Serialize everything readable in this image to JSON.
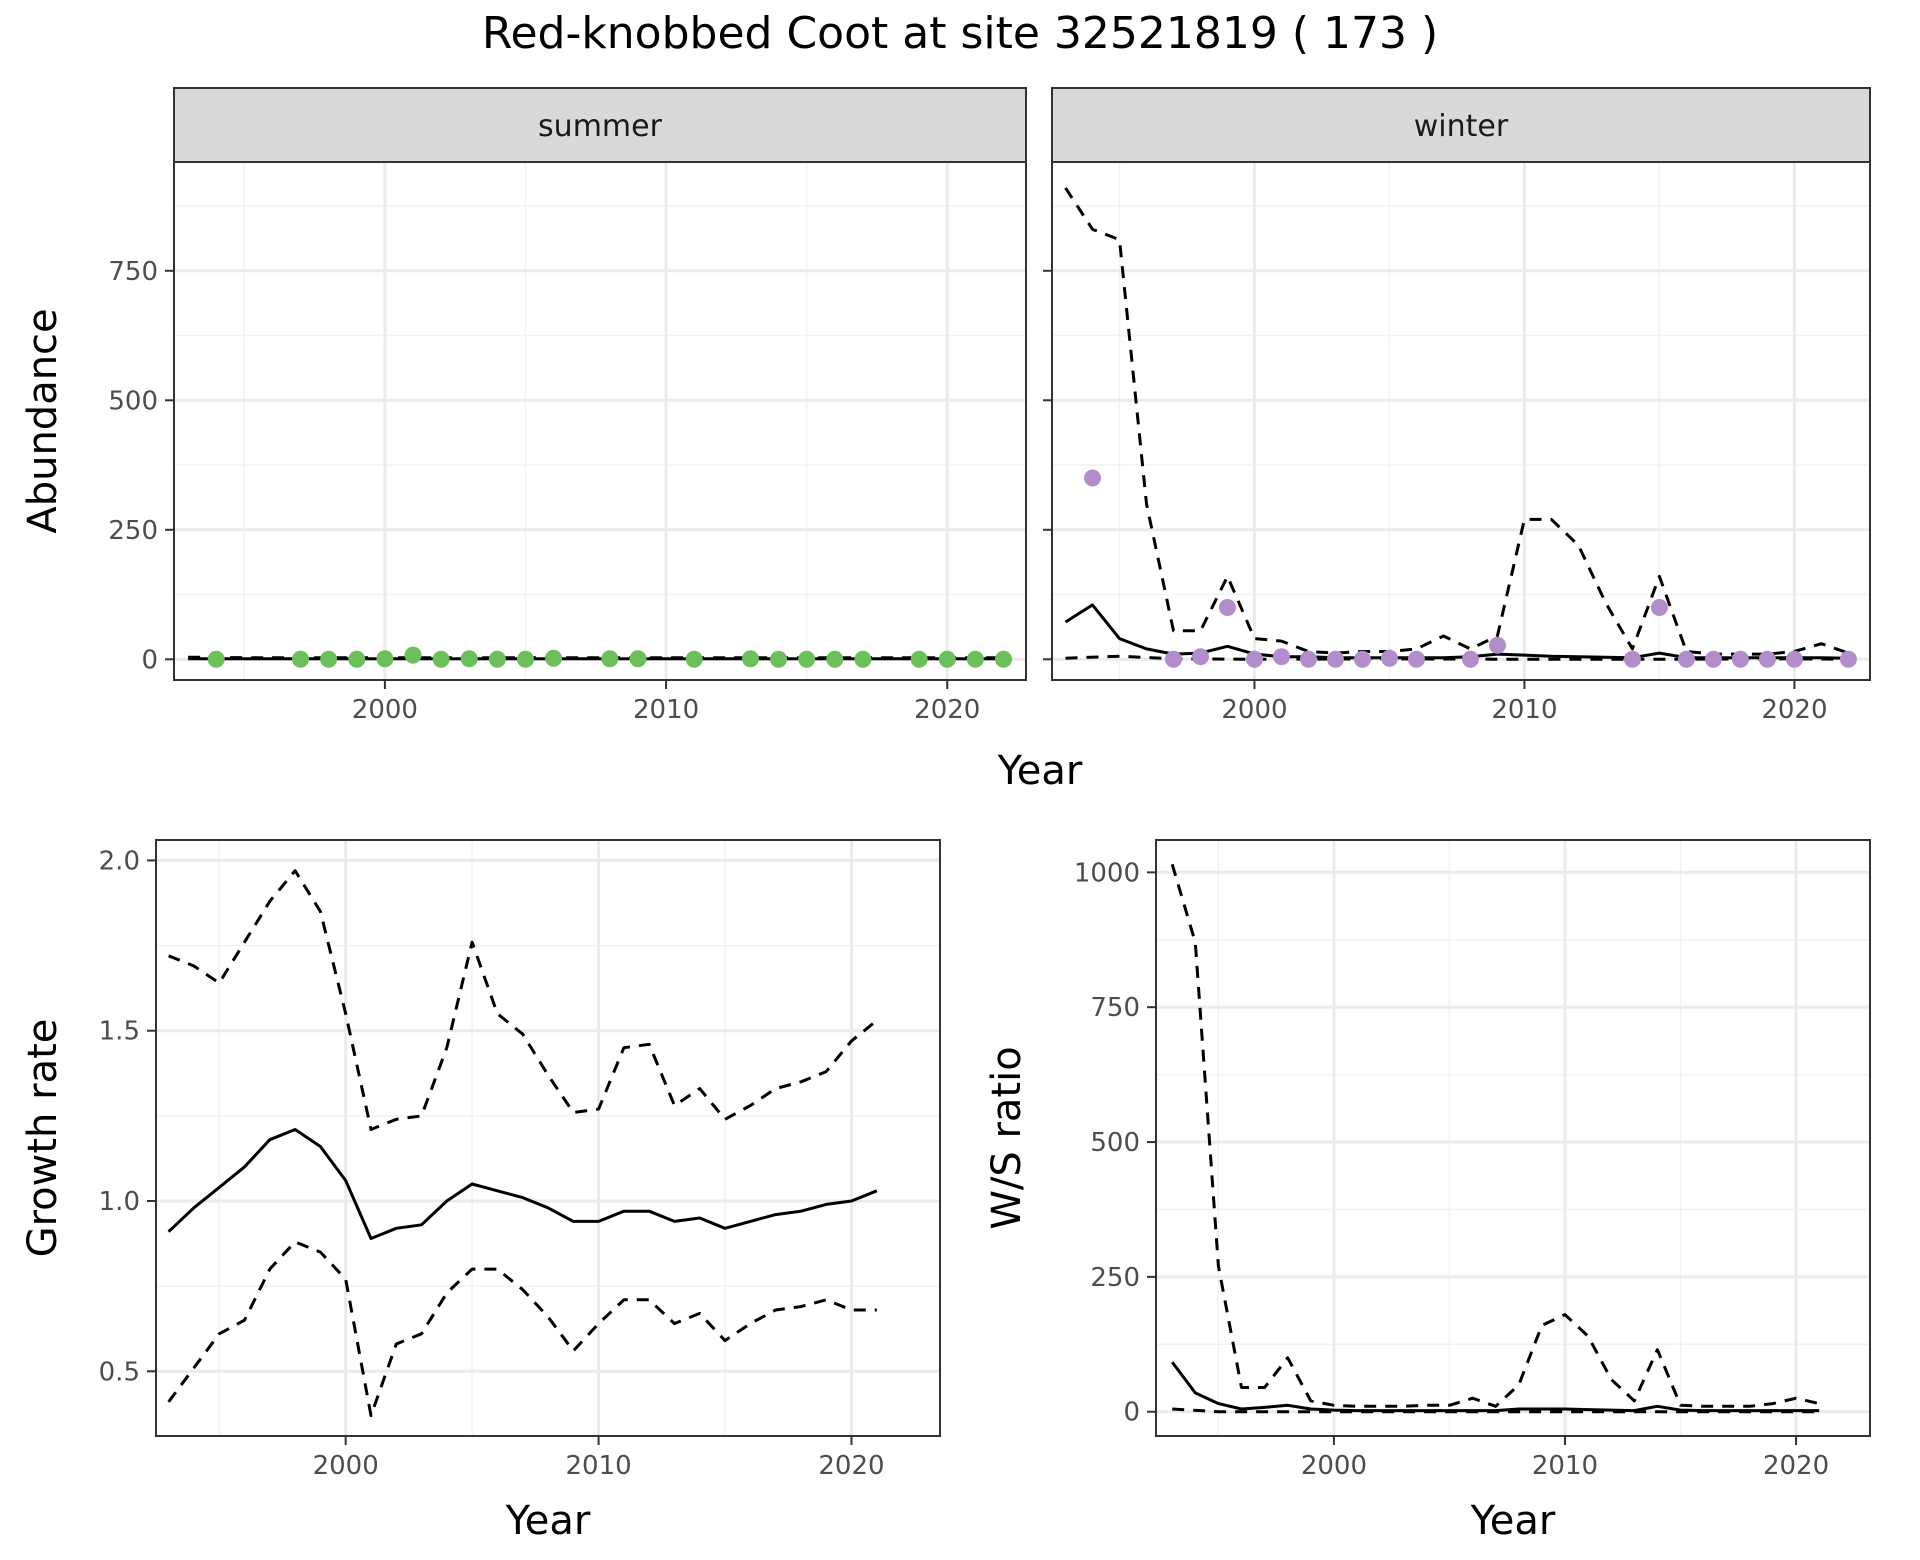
{
  "title": "Red-knobbed Coot at site 32521819 ( 173 )",
  "chart_data": [
    {
      "type": "line",
      "facets": [
        "summer",
        "winter"
      ],
      "xlabel": "Year",
      "ylabel": "Abundance",
      "xlim": [
        1992.5,
        2022.8
      ],
      "ylim": [
        -40,
        960
      ],
      "xticks": [
        2000,
        2010,
        2020
      ],
      "yticks": [
        0,
        250,
        500,
        750
      ],
      "panels": {
        "summer": {
          "points_color": "#6dbf5b",
          "points": {
            "x": [
              1994,
              1997,
              1998,
              1999,
              2000,
              2001,
              2002,
              2003,
              2004,
              2005,
              2006,
              2008,
              2009,
              2011,
              2013,
              2014,
              2015,
              2016,
              2017,
              2019,
              2020,
              2021,
              2022
            ],
            "y": [
              0,
              0,
              0,
              0,
              1,
              8,
              0,
              1,
              0,
              0,
              2,
              1,
              1,
              0,
              1,
              0,
              0,
              0,
              0,
              0,
              0,
              0,
              0
            ]
          },
          "series": [
            {
              "name": "",
              "style": "solid",
              "x": [
                1993,
                1995,
                1997,
                2000,
                2005,
                2010,
                2015,
                2020,
                2022
              ],
              "y": [
                1,
                1,
                1,
                1,
                1,
                1,
                1,
                1,
                1
              ]
            },
            {
              "name": "",
              "style": "dashed",
              "x": [
                1993,
                1995,
                1997,
                2000,
                2005,
                2010,
                2015,
                2020,
                2022
              ],
              "y": [
                4,
                3,
                3,
                3,
                3,
                3,
                3,
                3,
                3
              ]
            }
          ]
        },
        "winter": {
          "points_color": "#b38ccb",
          "points": {
            "x": [
              1994,
              1997,
              1998,
              1999,
              2000,
              2001,
              2002,
              2003,
              2004,
              2005,
              2006,
              2008,
              2009,
              2014,
              2015,
              2016,
              2017,
              2018,
              2019,
              2020,
              2022
            ],
            "y": [
              350,
              0,
              5,
              100,
              0,
              5,
              0,
              0,
              0,
              2,
              0,
              0,
              27,
              0,
              100,
              0,
              0,
              0,
              0,
              0,
              0
            ]
          },
          "series": [
            {
              "name": "",
              "style": "solid",
              "x": [
                1993,
                1994,
                1995,
                1996,
                1997,
                1998,
                1999,
                2000,
                2001,
                2002,
                2003,
                2004,
                2005,
                2006,
                2007,
                2008,
                2009,
                2010,
                2011,
                2012,
                2013,
                2014,
                2015,
                2016,
                2017,
                2018,
                2019,
                2020,
                2021,
                2022
              ],
              "y": [
                72,
                105,
                40,
                20,
                10,
                12,
                25,
                10,
                5,
                5,
                3,
                3,
                3,
                3,
                3,
                5,
                10,
                8,
                6,
                5,
                4,
                3,
                12,
                3,
                3,
                3,
                3,
                3,
                3,
                2
              ]
            },
            {
              "name": "",
              "style": "dashed",
              "x": [
                1993,
                1994,
                1995,
                1996,
                1997,
                1998,
                1999,
                2000,
                2001,
                2002,
                2003,
                2004,
                2005,
                2006,
                2007,
                2008,
                2009,
                2010,
                2011,
                2012,
                2013,
                2014,
                2015,
                2016,
                2017,
                2018,
                2019,
                2020,
                2021,
                2022
              ],
              "y": [
                910,
                830,
                810,
                300,
                55,
                55,
                160,
                40,
                35,
                15,
                12,
                15,
                15,
                20,
                45,
                20,
                45,
                270,
                270,
                220,
                110,
                20,
                160,
                15,
                10,
                10,
                10,
                15,
                30,
                12
              ]
            },
            {
              "name": "",
              "style": "dashed",
              "x": [
                1993,
                1995,
                1997,
                2000,
                2005,
                2010,
                2015,
                2020,
                2022
              ],
              "y": [
                2,
                6,
                1,
                0,
                1,
                0,
                0,
                1,
                0
              ]
            }
          ]
        }
      }
    },
    {
      "type": "line",
      "xlabel": "Year",
      "ylabel": "Growth rate",
      "xlim": [
        1992.5,
        2023.5
      ],
      "ylim": [
        0.31,
        2.06
      ],
      "xticks": [
        2000,
        2010,
        2020
      ],
      "yticks": [
        0.5,
        1.0,
        1.5,
        2.0
      ],
      "ytick_labels": [
        "0.5",
        "1.0",
        "1.5",
        "2.0"
      ],
      "series": [
        {
          "name": "",
          "style": "solid",
          "x": [
            1993,
            1994,
            1995,
            1996,
            1997,
            1998,
            1999,
            2000,
            2001,
            2002,
            2003,
            2004,
            2005,
            2006,
            2007,
            2008,
            2009,
            2010,
            2011,
            2012,
            2013,
            2014,
            2015,
            2016,
            2017,
            2018,
            2019,
            2020,
            2021
          ],
          "y": [
            0.91,
            0.98,
            1.04,
            1.1,
            1.18,
            1.21,
            1.16,
            1.06,
            0.89,
            0.92,
            0.93,
            1.0,
            1.05,
            1.03,
            1.01,
            0.98,
            0.94,
            0.94,
            0.97,
            0.97,
            0.94,
            0.95,
            0.92,
            0.94,
            0.96,
            0.97,
            0.99,
            1.0,
            1.03
          ]
        },
        {
          "name": "",
          "style": "dashed",
          "x": [
            1993,
            1994,
            1995,
            1996,
            1997,
            1998,
            1999,
            2000,
            2001,
            2002,
            2003,
            2004,
            2005,
            2006,
            2007,
            2008,
            2009,
            2010,
            2011,
            2012,
            2013,
            2014,
            2015,
            2016,
            2017,
            2018,
            2019,
            2020,
            2021
          ],
          "y": [
            1.72,
            1.69,
            1.64,
            1.76,
            1.88,
            1.97,
            1.85,
            1.55,
            1.21,
            1.24,
            1.25,
            1.45,
            1.76,
            1.55,
            1.49,
            1.37,
            1.26,
            1.27,
            1.45,
            1.46,
            1.28,
            1.33,
            1.24,
            1.28,
            1.33,
            1.35,
            1.38,
            1.47,
            1.53
          ]
        },
        {
          "name": "",
          "style": "dashed",
          "x": [
            1993,
            1994,
            1995,
            1996,
            1997,
            1998,
            1999,
            2000,
            2001,
            2002,
            2003,
            2004,
            2005,
            2006,
            2007,
            2008,
            2009,
            2010,
            2011,
            2012,
            2013,
            2014,
            2015,
            2016,
            2017,
            2018,
            2019,
            2020,
            2021
          ],
          "y": [
            0.41,
            0.51,
            0.61,
            0.65,
            0.8,
            0.88,
            0.85,
            0.77,
            0.37,
            0.58,
            0.61,
            0.73,
            0.8,
            0.8,
            0.74,
            0.66,
            0.56,
            0.64,
            0.71,
            0.71,
            0.64,
            0.67,
            0.59,
            0.64,
            0.68,
            0.69,
            0.71,
            0.68,
            0.68
          ]
        }
      ]
    },
    {
      "type": "line",
      "xlabel": "Year",
      "ylabel": "W/S ratio",
      "xlim": [
        1992.3,
        2023.2
      ],
      "ylim": [
        -45,
        1060
      ],
      "xticks": [
        2000,
        2010,
        2020
      ],
      "yticks": [
        0,
        250,
        500,
        750,
        1000
      ],
      "series": [
        {
          "name": "",
          "style": "solid",
          "x": [
            1993,
            1994,
            1995,
            1996,
            1997,
            1998,
            1999,
            2000,
            2001,
            2002,
            2003,
            2004,
            2005,
            2006,
            2007,
            2008,
            2009,
            2010,
            2011,
            2012,
            2013,
            2014,
            2015,
            2016,
            2017,
            2018,
            2019,
            2020,
            2021
          ],
          "y": [
            92,
            35,
            15,
            5,
            8,
            12,
            5,
            3,
            2,
            2,
            2,
            2,
            2,
            2,
            2,
            5,
            5,
            5,
            4,
            3,
            2,
            10,
            3,
            2,
            2,
            2,
            2,
            2,
            2
          ]
        },
        {
          "name": "",
          "style": "dashed",
          "x": [
            1993,
            1994,
            1995,
            1996,
            1997,
            1998,
            1999,
            2000,
            2001,
            2002,
            2003,
            2004,
            2005,
            2006,
            2007,
            2008,
            2009,
            2010,
            2011,
            2012,
            2013,
            2014,
            2015,
            2016,
            2017,
            2018,
            2019,
            2020,
            2021
          ],
          "y": [
            1015,
            870,
            270,
            45,
            45,
            100,
            20,
            12,
            10,
            10,
            10,
            12,
            12,
            25,
            10,
            50,
            160,
            180,
            140,
            60,
            20,
            115,
            12,
            10,
            10,
            10,
            15,
            25,
            15
          ]
        },
        {
          "name": "",
          "style": "dashed",
          "x": [
            1993,
            1995,
            1997,
            2000,
            2005,
            2010,
            2015,
            2020,
            2021
          ],
          "y": [
            5,
            0,
            0,
            0,
            0,
            0,
            0,
            0,
            0
          ]
        }
      ]
    }
  ]
}
